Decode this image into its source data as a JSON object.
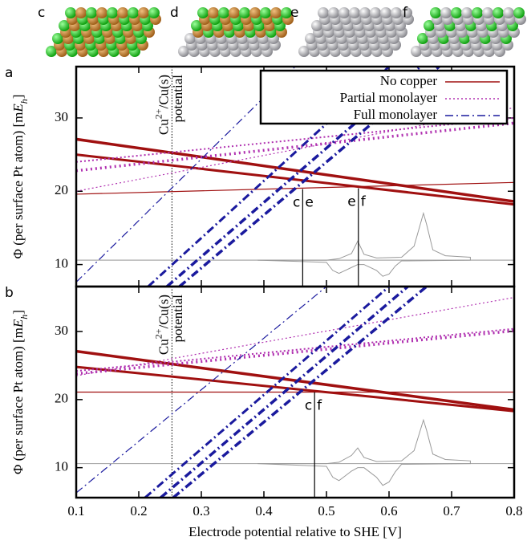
{
  "structure_labels": [
    "c",
    "d",
    "e",
    "f"
  ],
  "chart_data": [
    {
      "type": "line",
      "label": "a",
      "ylabel": [
        "Φ (per surface Pt atom) [m",
        "E",
        "h",
        "]"
      ],
      "xlim": [
        0.1,
        0.8
      ],
      "ylim": [
        7,
        37
      ],
      "xticks": [
        0.1,
        0.2,
        0.3,
        0.4,
        0.5,
        0.6,
        0.7,
        0.8
      ],
      "xtick_labels": false,
      "yticks": [
        10,
        20,
        30
      ],
      "legend": "upper right",
      "series": [
        {
          "name": "No copper",
          "color": "#a01010",
          "dash": "solid",
          "lines": [
            {
              "width": 1.2,
              "x": [
                0.1,
                0.8
              ],
              "values": [
                19.6,
                21.2
              ]
            },
            {
              "width": 3.5,
              "x": [
                0.1,
                0.8
              ],
              "values": [
                27.1,
                18.6
              ]
            },
            {
              "width": 3,
              "x": [
                0.1,
                0.8
              ],
              "values": [
                25.0,
                18.2
              ]
            }
          ]
        },
        {
          "name": "Partial monolayer",
          "color": "#b030b0",
          "dash": "dotted",
          "lines": [
            {
              "width": 1.2,
              "x": [
                0.1,
                0.8
              ],
              "values": [
                20.0,
                31.4
              ]
            },
            {
              "width": 2,
              "x": [
                0.1,
                0.8
              ],
              "values": [
                24.0,
                30.0
              ]
            },
            {
              "width": 3.5,
              "x": [
                0.1,
                0.8
              ],
              "values": [
                22.8,
                29.3
              ]
            }
          ]
        },
        {
          "name": "Full monolayer",
          "color": "#1a1a9e",
          "dash": "dashdot",
          "lines": [
            {
              "width": 1.2,
              "x": [
                0.1,
                0.45
              ],
              "values": [
                7.6,
                37
              ]
            },
            {
              "width": 3,
              "x": [
                0.215,
                0.6
              ],
              "values": [
                7,
                37
              ]
            },
            {
              "width": 3.5,
              "x": [
                0.245,
                0.65
              ],
              "values": [
                7,
                37
              ]
            },
            {
              "width": 3.5,
              "x": [
                0.265,
                0.68
              ],
              "values": [
                7,
                37
              ]
            }
          ]
        }
      ],
      "cu_line": {
        "x": 0.253,
        "label": [
          "Cu",
          "2+",
          "/Cu(s)"
        ],
        "label2": "potential"
      },
      "markers": [
        {
          "x": 0.462,
          "top": 20.3,
          "labels": [
            "c",
            "e"
          ]
        },
        {
          "x": 0.551,
          "top": 20.4,
          "labels": [
            "e",
            "f"
          ]
        }
      ],
      "baseline": {
        "color": "#aaaaaa",
        "value": 10.6
      },
      "cv": {
        "color": "#999999",
        "x": [
          0.39,
          0.5,
          0.52,
          0.54,
          0.55,
          0.56,
          0.58,
          0.62,
          0.64,
          0.65,
          0.655,
          0.66,
          0.67,
          0.69,
          0.73,
          0.73,
          0.62,
          0.61,
          0.6,
          0.59,
          0.58,
          0.56,
          0.55,
          0.54,
          0.53,
          0.52,
          0.51,
          0.5,
          0.39
        ],
        "values": [
          10.6,
          10.6,
          10.8,
          11.5,
          13.2,
          11.4,
          10.9,
          11.0,
          12.5,
          15.5,
          17.0,
          15.5,
          12.0,
          11.2,
          11.0,
          10.6,
          10.5,
          9.8,
          8.7,
          8.4,
          9.2,
          10.0,
          10.0,
          9.6,
          9.2,
          8.8,
          9.2,
          10.3,
          10.6
        ]
      }
    },
    {
      "type": "line",
      "label": "b",
      "ylabel": [
        "Φ (per surface Pt atom) [m",
        "E",
        "h",
        "]"
      ],
      "xlabel": "Electrode potential relative to SHE [V]",
      "xlim": [
        0.1,
        0.8
      ],
      "ylim": [
        5.6,
        36.6
      ],
      "xticks": [
        0.1,
        0.2,
        0.3,
        0.4,
        0.5,
        0.6,
        0.7,
        0.8
      ],
      "xtick_labels": true,
      "yticks": [
        10,
        20,
        30
      ],
      "series": [
        {
          "color": "#a01010",
          "dash": "solid",
          "lines": [
            {
              "width": 1.2,
              "x": [
                0.1,
                0.8
              ],
              "values": [
                21.1,
                21.1
              ]
            },
            {
              "width": 3.5,
              "x": [
                0.1,
                0.8
              ],
              "values": [
                27.1,
                18.5
              ]
            },
            {
              "width": 3,
              "x": [
                0.1,
                0.8
              ],
              "values": [
                24.8,
                18.3
              ]
            }
          ]
        },
        {
          "color": "#b030b0",
          "dash": "dotted",
          "lines": [
            {
              "width": 1.2,
              "x": [
                0.1,
                0.8
              ],
              "values": [
                23.5,
                35.0
              ]
            },
            {
              "width": 2,
              "x": [
                0.1,
                0.8
              ],
              "values": [
                24.2,
                30.4
              ]
            },
            {
              "width": 3.5,
              "x": [
                0.1,
                0.8
              ],
              "values": [
                23.8,
                30.1
              ]
            }
          ]
        },
        {
          "color": "#1a1a9e",
          "dash": "dashdot",
          "lines": [
            {
              "width": 1.2,
              "x": [
                0.1,
                0.5
              ],
              "values": [
                6.3,
                36.6
              ]
            },
            {
              "width": 3,
              "x": [
                0.21,
                0.6
              ],
              "values": [
                5.6,
                36.6
              ]
            },
            {
              "width": 3.5,
              "x": [
                0.235,
                0.63
              ],
              "values": [
                5.6,
                36.6
              ]
            },
            {
              "width": 3.5,
              "x": [
                0.255,
                0.66
              ],
              "values": [
                5.6,
                36.6
              ]
            }
          ]
        }
      ],
      "cu_line": {
        "x": 0.253,
        "label": [
          "Cu",
          "2+",
          "/Cu(s)"
        ],
        "label2": "potential"
      },
      "markers": [
        {
          "x": 0.481,
          "top": 21.1,
          "labels": [
            "c",
            "f"
          ]
        }
      ],
      "baseline": {
        "color": "#aaaaaa",
        "value": 10.6
      },
      "cv": {
        "color": "#999999",
        "x": [
          0.39,
          0.5,
          0.52,
          0.54,
          0.55,
          0.56,
          0.58,
          0.62,
          0.64,
          0.65,
          0.655,
          0.66,
          0.67,
          0.69,
          0.73,
          0.73,
          0.62,
          0.61,
          0.6,
          0.59,
          0.58,
          0.56,
          0.55,
          0.54,
          0.53,
          0.52,
          0.51,
          0.5,
          0.39
        ],
        "values": [
          10.6,
          10.6,
          10.8,
          11.8,
          12.9,
          11.5,
          10.9,
          11.0,
          12.5,
          15.5,
          17.0,
          15.5,
          12.0,
          11.2,
          11.0,
          10.6,
          10.5,
          9.4,
          7.9,
          7.4,
          8.6,
          10.0,
          10.0,
          9.5,
          8.8,
          8.1,
          8.6,
          10.2,
          10.6
        ]
      }
    }
  ]
}
